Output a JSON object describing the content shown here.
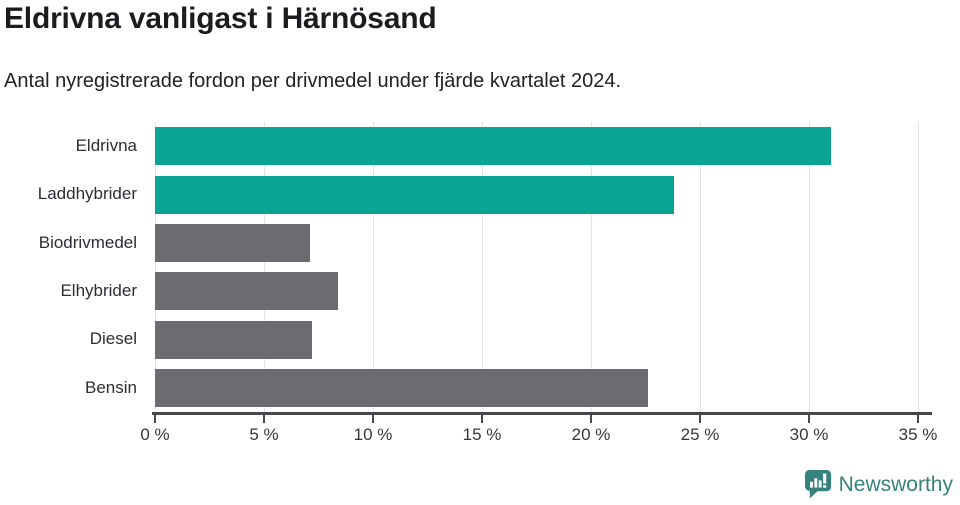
{
  "header": {
    "title": "Eldrivna vanligast i Härnösand",
    "subtitle": "Antal nyregistrerade fordon per drivmedel under fjärde kvartalet 2024."
  },
  "chart_data": {
    "type": "bar",
    "orientation": "horizontal",
    "title": "Eldrivna vanligast i Härnösand",
    "subtitle": "Antal nyregistrerade fordon per drivmedel under fjärde kvartalet 2024.",
    "categories": [
      "Eldrivna",
      "Laddhybrider",
      "Biodrivmedel",
      "Elhybrider",
      "Diesel",
      "Bensin"
    ],
    "values": [
      31.0,
      23.8,
      7.1,
      8.4,
      7.2,
      22.6
    ],
    "unit": "%",
    "bar_colors": [
      "#0aa396",
      "#0aa396",
      "#6c6b70",
      "#6c6b70",
      "#6c6b70",
      "#6c6b70"
    ],
    "xlim": [
      0,
      35
    ],
    "x_tick_step": 5,
    "x_tick_labels": [
      "0 %",
      "5 %",
      "10 %",
      "15 %",
      "20 %",
      "25 %",
      "30 %",
      "35 %"
    ],
    "xlabel": "",
    "ylabel": "",
    "grid": true,
    "legend": "none"
  },
  "footer": {
    "brand": "Newsworthy",
    "brand_color": "#35837c",
    "logo_icon": "newsworthy-speech-bubble-bar-chart-icon"
  },
  "colors": {
    "highlight_teal": "#0aa396",
    "neutral_gray": "#6c6b70",
    "axis": "#47464b",
    "gridline": "#e3e3e4",
    "text_dark": "#1c1b20"
  }
}
